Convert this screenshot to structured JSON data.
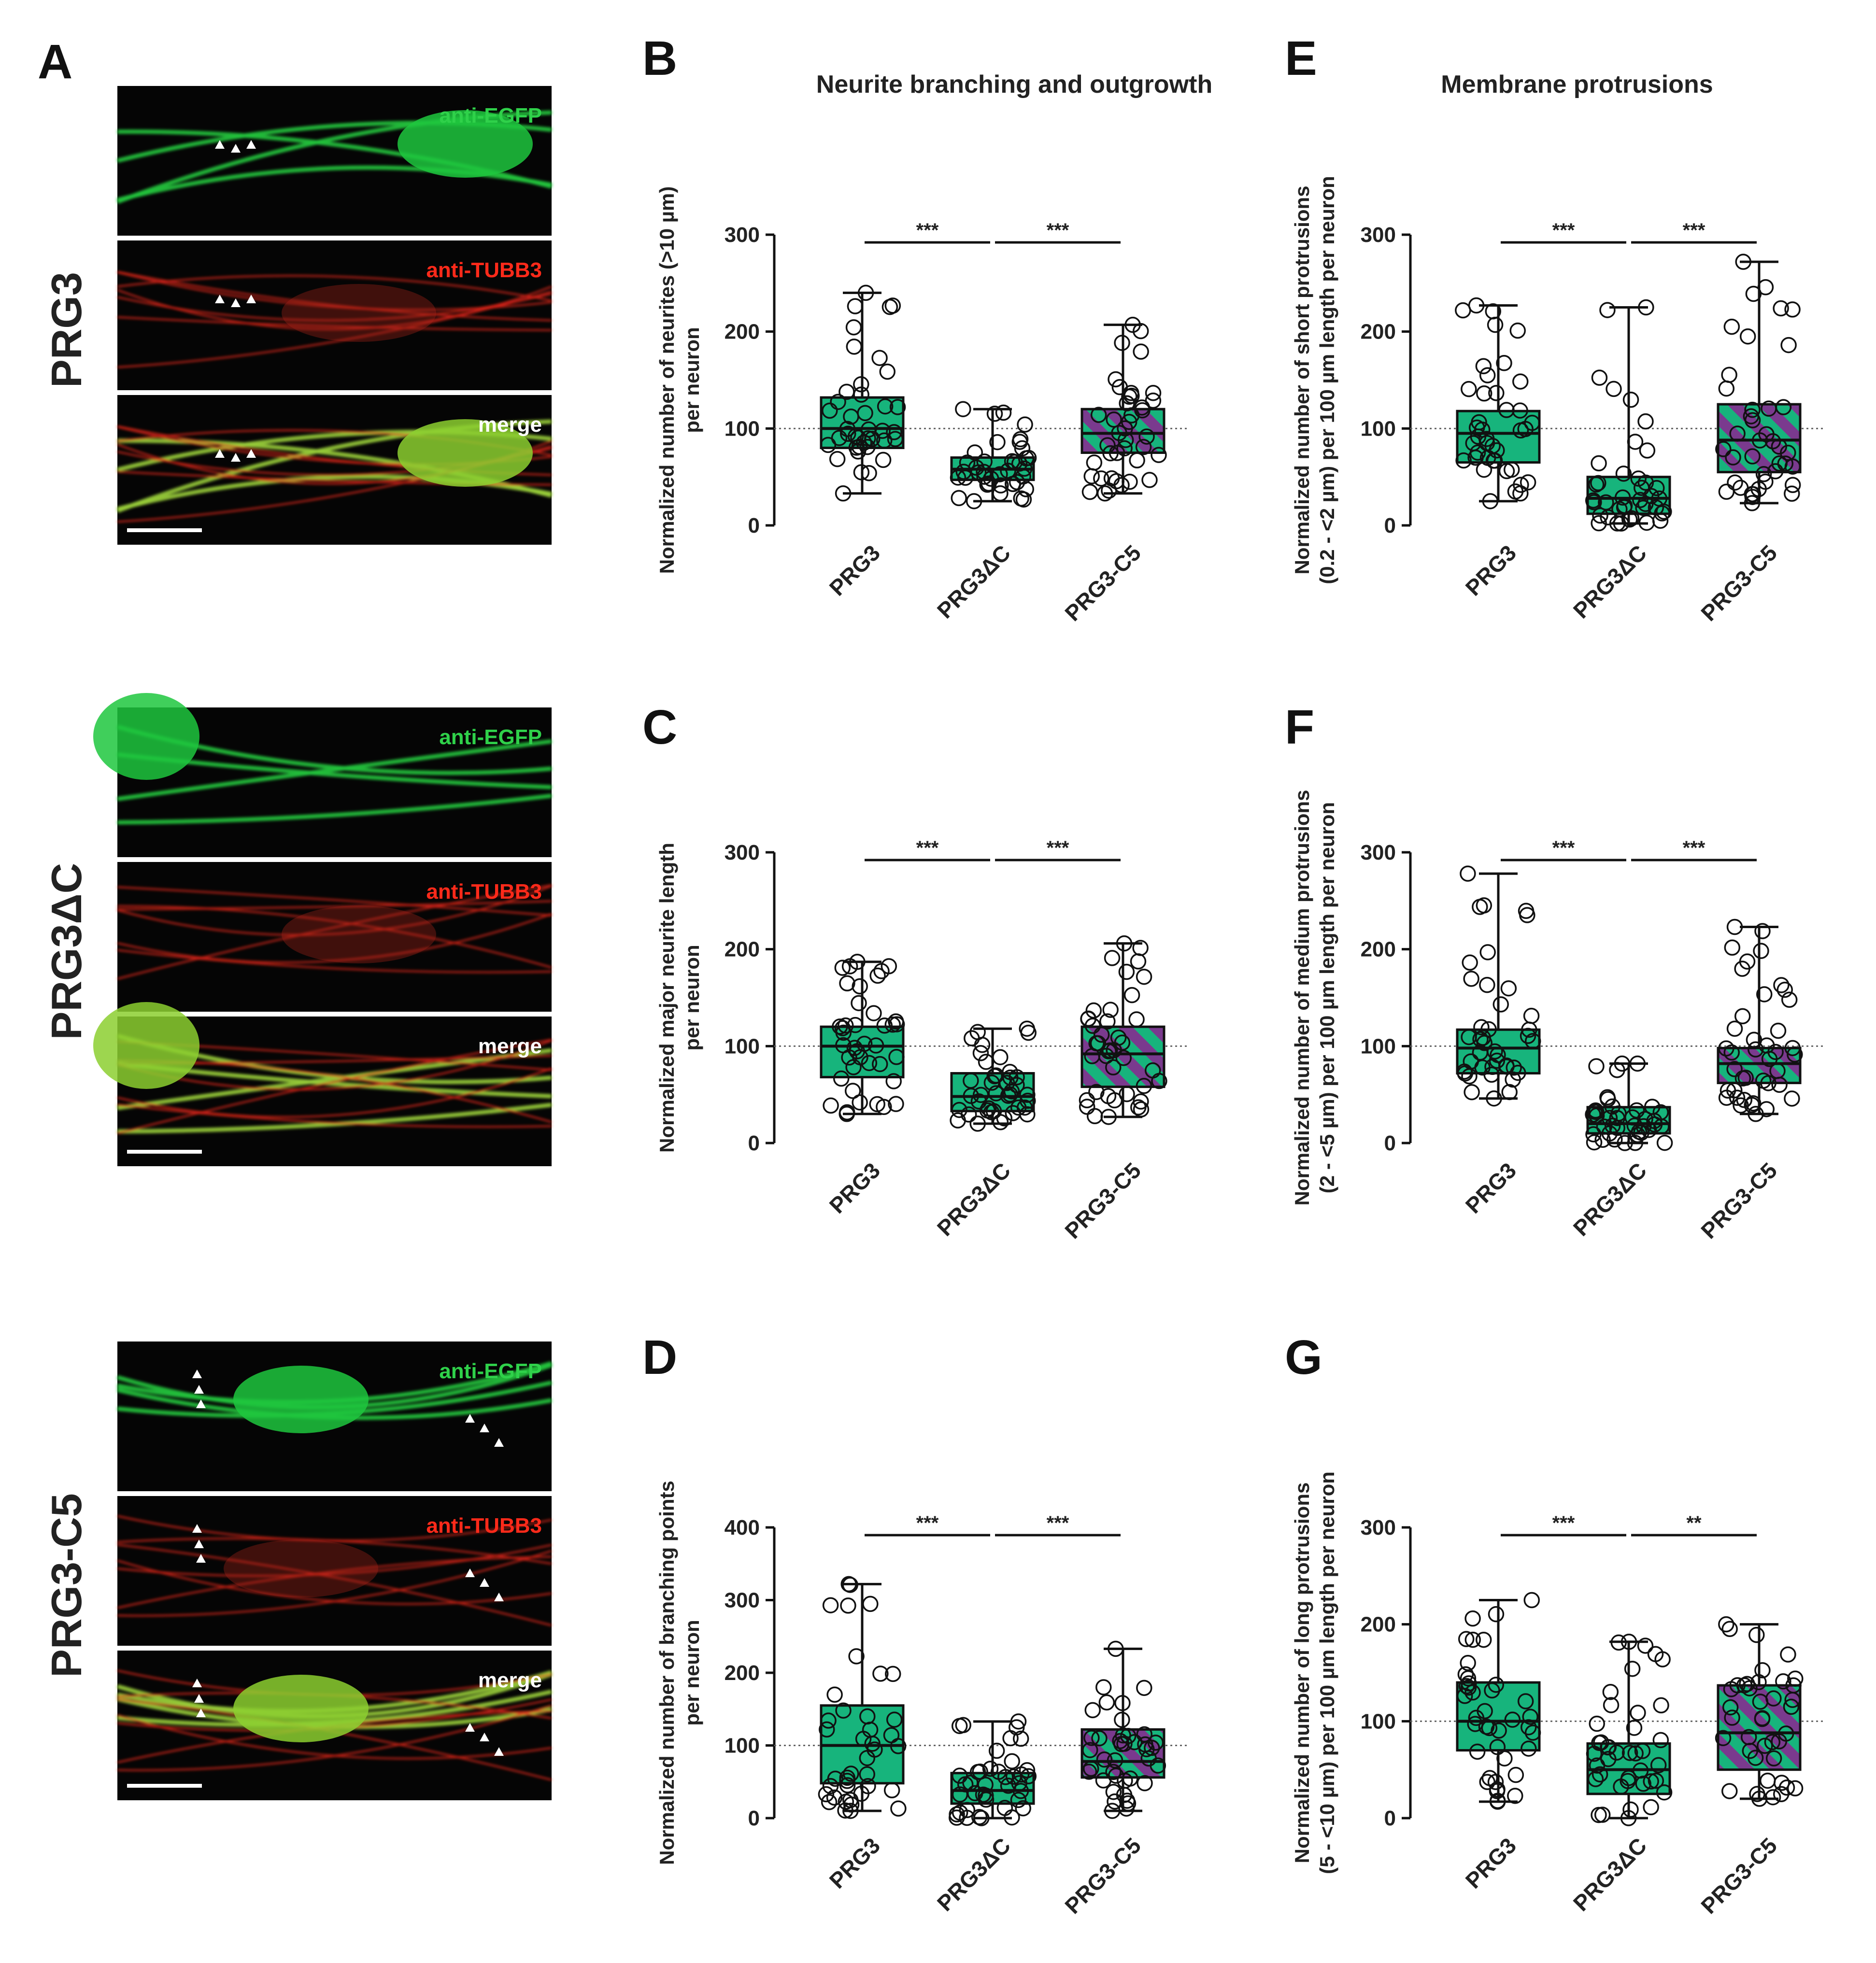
{
  "panel_a": {
    "letter": "A",
    "rows": [
      {
        "label": "PRG3",
        "has_arrows": true
      },
      {
        "label": "PRG3ΔC",
        "has_arrows": false
      },
      {
        "label": "PRG3-C5",
        "has_arrows": true
      }
    ],
    "channels": [
      {
        "label": "anti-EGFP",
        "color": "#2fd14a"
      },
      {
        "label": "anti-TUBB3",
        "color": "#ff2a1a"
      },
      {
        "label": "merge",
        "color": "#ffffff"
      }
    ]
  },
  "section_titles": {
    "left": "Neurite branching and outgrowth",
    "right": "Membrane protrusions"
  },
  "colors": {
    "box_green": "#17b47c",
    "hatch_purple": "#7a3a8e",
    "reference_line": "#666666"
  },
  "chart_data": [
    {
      "letter": "B",
      "type": "box",
      "ylabel": [
        "Normalized number of neurites (>10 µm)",
        "per neuron"
      ],
      "ylim": [
        0,
        300
      ],
      "yticks": [
        0,
        100,
        200,
        300
      ],
      "reference_line": 100,
      "categories": [
        "PRG3",
        "PRG3ΔC",
        "PRG3-C5"
      ],
      "significance": [
        "***",
        "***"
      ],
      "boxes": [
        {
          "min": 33,
          "q1": 80,
          "median": 100,
          "q3": 132,
          "max": 240
        },
        {
          "min": 25,
          "q1": 47,
          "median": 58,
          "q3": 70,
          "max": 120
        },
        {
          "min": 33,
          "q1": 75,
          "median": 95,
          "q3": 120,
          "max": 207
        }
      ]
    },
    {
      "letter": "C",
      "type": "box",
      "ylabel": [
        "Normalized major neurite length",
        "per neuron"
      ],
      "ylim": [
        0,
        300
      ],
      "yticks": [
        0,
        100,
        200,
        300
      ],
      "reference_line": 100,
      "categories": [
        "PRG3",
        "PRG3ΔC",
        "PRG3-C5"
      ],
      "significance": [
        "***",
        "***"
      ],
      "boxes": [
        {
          "min": 30,
          "q1": 68,
          "median": 100,
          "q3": 120,
          "max": 187
        },
        {
          "min": 20,
          "q1": 33,
          "median": 48,
          "q3": 72,
          "max": 118
        },
        {
          "min": 27,
          "q1": 58,
          "median": 92,
          "q3": 120,
          "max": 206
        }
      ]
    },
    {
      "letter": "D",
      "type": "box",
      "ylabel": [
        "Normalized number of branching points",
        "per neuron"
      ],
      "ylim": [
        0,
        400
      ],
      "yticks": [
        0,
        100,
        200,
        300,
        400
      ],
      "reference_line": 100,
      "categories": [
        "PRG3",
        "PRG3ΔC",
        "PRG3-C5"
      ],
      "significance": [
        "***",
        "***"
      ],
      "boxes": [
        {
          "min": 10,
          "q1": 48,
          "median": 100,
          "q3": 155,
          "max": 322
        },
        {
          "min": 0,
          "q1": 20,
          "median": 38,
          "q3": 62,
          "max": 133
        },
        {
          "min": 10,
          "q1": 56,
          "median": 78,
          "q3": 122,
          "max": 233
        }
      ]
    },
    {
      "letter": "E",
      "type": "box",
      "ylabel": [
        "Normalized number of short protrusions",
        "(0.2 - <2 µm) per 100 µm length per neuron"
      ],
      "ylim": [
        0,
        300
      ],
      "yticks": [
        0,
        100,
        200,
        300
      ],
      "reference_line": 100,
      "categories": [
        "PRG3",
        "PRG3ΔC",
        "PRG3-C5"
      ],
      "significance": [
        "***",
        "***"
      ],
      "boxes": [
        {
          "min": 25,
          "q1": 65,
          "median": 95,
          "q3": 118,
          "max": 227
        },
        {
          "min": 2,
          "q1": 12,
          "median": 28,
          "q3": 50,
          "max": 225
        },
        {
          "min": 23,
          "q1": 55,
          "median": 88,
          "q3": 125,
          "max": 272
        }
      ]
    },
    {
      "letter": "F",
      "type": "box",
      "ylabel": [
        "Normalized number of medium protrusions",
        "(2 - <5 µm) per 100 µm length per neuron"
      ],
      "ylim": [
        0,
        300
      ],
      "yticks": [
        0,
        100,
        200,
        300
      ],
      "reference_line": 100,
      "categories": [
        "PRG3",
        "PRG3ΔC",
        "PRG3-C5"
      ],
      "significance": [
        "***",
        "***"
      ],
      "boxes": [
        {
          "min": 46,
          "q1": 72,
          "median": 98,
          "q3": 117,
          "max": 278
        },
        {
          "min": 0,
          "q1": 10,
          "median": 20,
          "q3": 37,
          "max": 82
        },
        {
          "min": 30,
          "q1": 62,
          "median": 82,
          "q3": 98,
          "max": 223
        }
      ]
    },
    {
      "letter": "G",
      "type": "box",
      "ylabel": [
        "Normalized number of long protrusions",
        "(5 - <10 µm) per 100 µm length per neuron"
      ],
      "ylim": [
        0,
        300
      ],
      "yticks": [
        0,
        100,
        200,
        300
      ],
      "reference_line": 100,
      "categories": [
        "PRG3",
        "PRG3ΔC",
        "PRG3-C5"
      ],
      "significance": [
        "***",
        "**"
      ],
      "boxes": [
        {
          "min": 17,
          "q1": 70,
          "median": 100,
          "q3": 140,
          "max": 225
        },
        {
          "min": 0,
          "q1": 25,
          "median": 50,
          "q3": 77,
          "max": 182
        },
        {
          "min": 20,
          "q1": 50,
          "median": 88,
          "q3": 137,
          "max": 200
        }
      ]
    }
  ]
}
